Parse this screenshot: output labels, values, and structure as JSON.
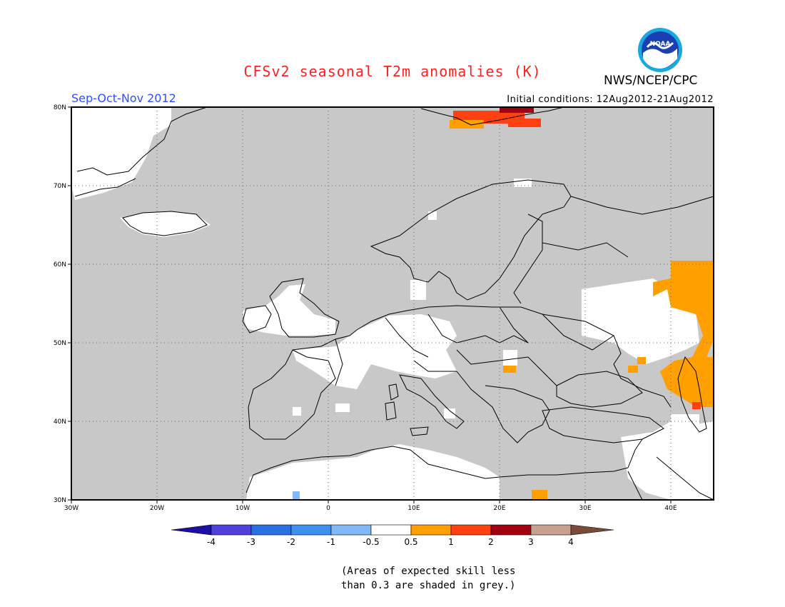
{
  "header": {
    "title": "CFSv2 seasonal T2m anomalies (K)",
    "season": "Sep-Oct-Nov 2012",
    "initial_conditions": "Initial conditions: 12Aug2012-21Aug2012",
    "agency": "NWS/NCEP/CPC",
    "logo_text": "NOAA"
  },
  "map": {
    "lon_range": [
      -30,
      45
    ],
    "lat_range": [
      30,
      80
    ],
    "lon_ticks": [
      "30W",
      "20W",
      "10W",
      "0",
      "10E",
      "20E",
      "30E",
      "40E"
    ],
    "lat_ticks": [
      "80N",
      "70N",
      "60N",
      "50N",
      "40N",
      "30N"
    ],
    "background_color": "#c8c8c8",
    "land_outline_color": "#000000"
  },
  "legend": {
    "tick_labels": [
      "-4",
      "-3",
      "-2",
      "-1",
      "-0.5",
      "0.5",
      "1",
      "2",
      "3",
      "4"
    ],
    "colors": [
      "#1a0fa0",
      "#5040d8",
      "#2a70e0",
      "#4090f0",
      "#80b8f8",
      "#ffffff",
      "#ffa000",
      "#ff4010",
      "#a00010",
      "#c8a090",
      "#7a4a38"
    ]
  },
  "footnote": {
    "line1": "(Areas of expected skill less",
    "line2": "than 0.3 are shaded in grey.)"
  }
}
